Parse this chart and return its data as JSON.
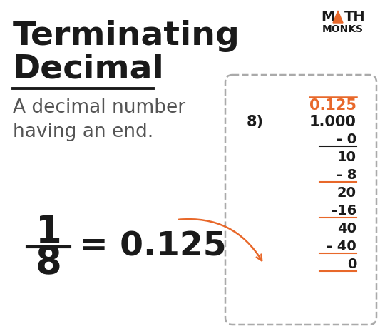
{
  "title_line1": "Terminating",
  "title_line2": "Decimal",
  "subtitle": "A decimal number\nhaving an end.",
  "fraction_num": "1",
  "fraction_den": "8",
  "equals": "= 0.125",
  "bg_color": "#ffffff",
  "title_color": "#1a1a1a",
  "subtitle_color": "#555555",
  "fraction_color": "#1a1a1a",
  "orange_color": "#e8682a",
  "box_color": "#aaaaaa",
  "long_div_quotient": "0.125",
  "long_div_divisor": "8",
  "long_div_dividend": "1.000",
  "long_div_steps": [
    {
      "value": "- 0",
      "underline": true,
      "underline_color": "#1a1a1a"
    },
    {
      "value": "10",
      "underline": false,
      "underline_color": ""
    },
    {
      "value": "- 8",
      "underline": true,
      "underline_color": "#e8682a"
    },
    {
      "value": "20",
      "underline": false,
      "underline_color": ""
    },
    {
      "value": "-16",
      "underline": true,
      "underline_color": "#e8682a"
    },
    {
      "value": "40",
      "underline": false,
      "underline_color": ""
    },
    {
      "value": "- 40",
      "underline": true,
      "underline_color": "#e8682a"
    },
    {
      "value": "0",
      "underline": true,
      "underline_color": "#e8682a"
    }
  ],
  "triangle_color": "#e8682a"
}
